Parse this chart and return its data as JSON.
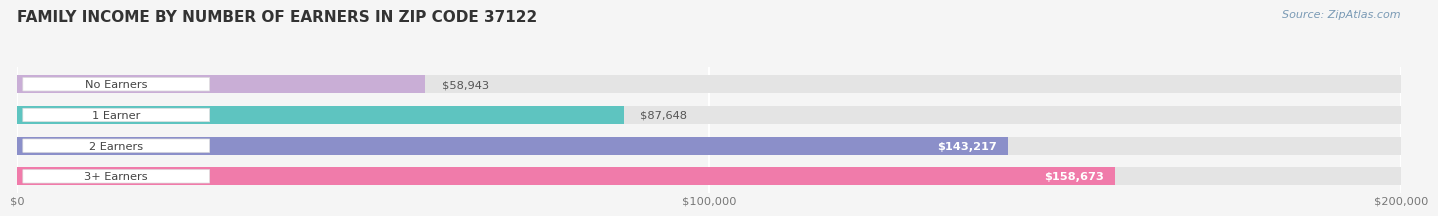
{
  "title": "FAMILY INCOME BY NUMBER OF EARNERS IN ZIP CODE 37122",
  "source": "Source: ZipAtlas.com",
  "categories": [
    "No Earners",
    "1 Earner",
    "2 Earners",
    "3+ Earners"
  ],
  "values": [
    58943,
    87648,
    143217,
    158673
  ],
  "bar_colors": [
    "#c9aed6",
    "#5ec4c0",
    "#8b8fc9",
    "#f07baa"
  ],
  "value_labels": [
    "$58,943",
    "$87,648",
    "$143,217",
    "$158,673"
  ],
  "xlim": [
    0,
    200000
  ],
  "xticks": [
    0,
    100000,
    200000
  ],
  "xticklabels": [
    "$0",
    "$100,000",
    "$200,000"
  ],
  "background_color": "#f5f5f5",
  "bar_background_color": "#e4e4e4",
  "title_fontsize": 11,
  "source_fontsize": 8,
  "bar_height": 0.58
}
